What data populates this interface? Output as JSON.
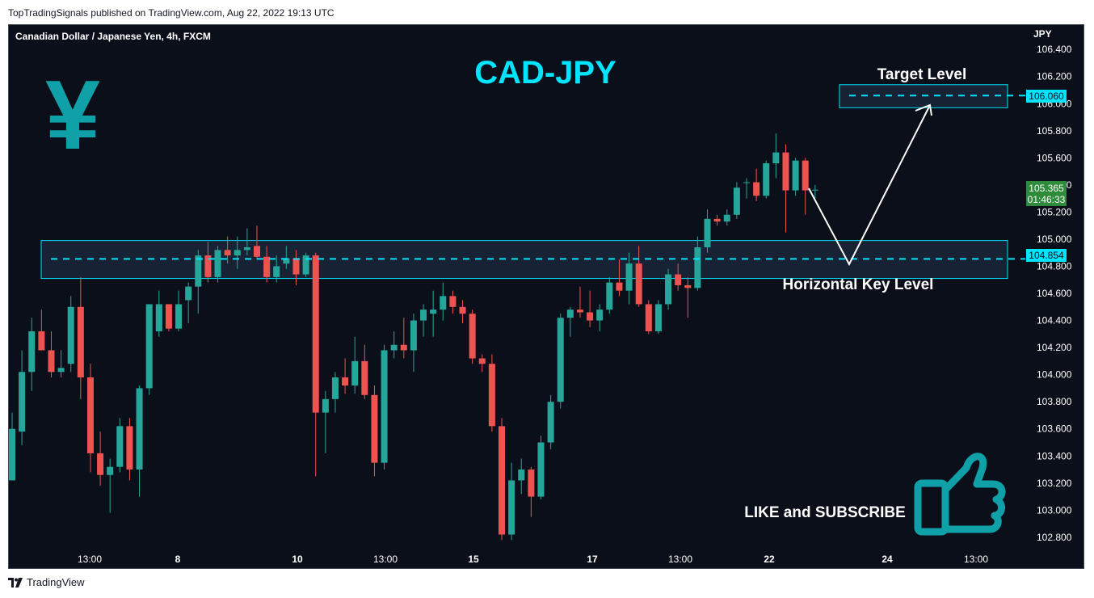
{
  "header": {
    "publish_line": "TopTradingSignals published on TradingView.com, Aug 22, 2022 19:13 UTC"
  },
  "chart_title": "Canadian Dollar / Japanese Yen, 4h, FXCM",
  "overlay": {
    "pair_text": "CAD-JPY",
    "target_label": "Target Level",
    "key_label": "Horizontal Key Level",
    "cta_text": "LIKE and SUBSCRIBE",
    "yen_symbol": "¥",
    "yen_icon": "yen-icon",
    "thumb_icon": "thumbs-up-icon",
    "accent_color": "#00e5ff",
    "teal_color": "#10a0a8"
  },
  "price_axis": {
    "currency": "JPY",
    "ticks": [
      "106.400",
      "106.200",
      "106.000",
      "105.800",
      "105.600",
      "105.400",
      "105.200",
      "105.000",
      "104.800",
      "104.600",
      "104.400",
      "104.200",
      "104.000",
      "103.800",
      "103.600",
      "103.400",
      "103.200",
      "103.000",
      "102.800"
    ],
    "last_price": "105.365",
    "countdown": "01:46:33",
    "target_price": "106.060",
    "key_price": "104.854"
  },
  "time_axis": {
    "ticks": [
      "13:00",
      "8",
      "10",
      "13:00",
      "15",
      "17",
      "13:00",
      "22",
      "24",
      "13:00"
    ]
  },
  "footer": {
    "brand": "TradingView"
  },
  "chart_data": {
    "type": "candlestick",
    "title": "Canadian Dollar / Japanese Yen, 4h, FXCM",
    "ylabel": "JPY",
    "ylim": [
      102.68,
      106.58
    ],
    "up_color": "#26a69a",
    "down_color": "#ef5350",
    "levels": [
      {
        "name": "Target Level",
        "value": 106.06,
        "zone": [
          105.97,
          106.14
        ]
      },
      {
        "name": "Horizontal Key Level",
        "value": 104.854,
        "zone": [
          104.71,
          104.99
        ]
      }
    ],
    "candles": [
      {
        "o": 103.22,
        "h": 103.72,
        "l": 103.22,
        "c": 103.6
      },
      {
        "o": 103.58,
        "h": 104.18,
        "l": 103.48,
        "c": 104.02
      },
      {
        "o": 104.02,
        "h": 104.42,
        "l": 103.88,
        "c": 104.32
      },
      {
        "o": 104.32,
        "h": 104.48,
        "l": 104.18,
        "c": 104.18
      },
      {
        "o": 104.18,
        "h": 104.32,
        "l": 103.98,
        "c": 104.02
      },
      {
        "o": 104.02,
        "h": 104.18,
        "l": 103.98,
        "c": 104.05
      },
      {
        "o": 104.08,
        "h": 104.58,
        "l": 104.02,
        "c": 104.5
      },
      {
        "o": 104.5,
        "h": 104.72,
        "l": 103.82,
        "c": 103.98
      },
      {
        "o": 103.98,
        "h": 104.08,
        "l": 103.28,
        "c": 103.42
      },
      {
        "o": 103.42,
        "h": 103.58,
        "l": 103.18,
        "c": 103.26
      },
      {
        "o": 103.26,
        "h": 103.38,
        "l": 102.98,
        "c": 103.32
      },
      {
        "o": 103.32,
        "h": 103.68,
        "l": 103.28,
        "c": 103.62
      },
      {
        "o": 103.62,
        "h": 103.68,
        "l": 103.22,
        "c": 103.3
      },
      {
        "o": 103.3,
        "h": 103.92,
        "l": 103.1,
        "c": 103.9
      },
      {
        "o": 103.9,
        "h": 104.52,
        "l": 103.85,
        "c": 104.52
      },
      {
        "o": 104.32,
        "h": 104.62,
        "l": 104.28,
        "c": 104.52
      },
      {
        "o": 104.52,
        "h": 104.52,
        "l": 104.32,
        "c": 104.34
      },
      {
        "o": 104.34,
        "h": 104.62,
        "l": 104.32,
        "c": 104.52
      },
      {
        "o": 104.55,
        "h": 104.68,
        "l": 104.38,
        "c": 104.65
      },
      {
        "o": 104.65,
        "h": 104.92,
        "l": 104.45,
        "c": 104.88
      },
      {
        "o": 104.88,
        "h": 104.98,
        "l": 104.68,
        "c": 104.72
      },
      {
        "o": 104.72,
        "h": 104.95,
        "l": 104.68,
        "c": 104.92
      },
      {
        "o": 104.92,
        "h": 105.02,
        "l": 104.82,
        "c": 104.88
      },
      {
        "o": 104.88,
        "h": 105.02,
        "l": 104.78,
        "c": 104.92
      },
      {
        "o": 104.92,
        "h": 105.08,
        "l": 104.88,
        "c": 104.94
      },
      {
        "o": 104.95,
        "h": 105.1,
        "l": 104.85,
        "c": 104.87
      },
      {
        "o": 104.87,
        "h": 104.95,
        "l": 104.68,
        "c": 104.72
      },
      {
        "o": 104.72,
        "h": 104.88,
        "l": 104.68,
        "c": 104.8
      },
      {
        "o": 104.82,
        "h": 104.95,
        "l": 104.78,
        "c": 104.86
      },
      {
        "o": 104.86,
        "h": 104.92,
        "l": 104.66,
        "c": 104.74
      },
      {
        "o": 104.74,
        "h": 104.9,
        "l": 104.72,
        "c": 104.88
      },
      {
        "o": 104.88,
        "h": 104.9,
        "l": 103.25,
        "c": 103.72
      },
      {
        "o": 103.72,
        "h": 103.88,
        "l": 103.42,
        "c": 103.82
      },
      {
        "o": 103.82,
        "h": 104.02,
        "l": 103.72,
        "c": 103.98
      },
      {
        "o": 103.98,
        "h": 104.12,
        "l": 103.86,
        "c": 103.92
      },
      {
        "o": 103.92,
        "h": 104.28,
        "l": 103.86,
        "c": 104.1
      },
      {
        "o": 104.1,
        "h": 104.22,
        "l": 103.82,
        "c": 103.85
      },
      {
        "o": 103.85,
        "h": 103.92,
        "l": 103.25,
        "c": 103.35
      },
      {
        "o": 103.35,
        "h": 104.22,
        "l": 103.3,
        "c": 104.18
      },
      {
        "o": 104.18,
        "h": 104.32,
        "l": 104.12,
        "c": 104.22
      },
      {
        "o": 104.22,
        "h": 104.42,
        "l": 104.12,
        "c": 104.18
      },
      {
        "o": 104.18,
        "h": 104.45,
        "l": 104.02,
        "c": 104.4
      },
      {
        "o": 104.4,
        "h": 104.52,
        "l": 104.28,
        "c": 104.48
      },
      {
        "o": 104.45,
        "h": 104.62,
        "l": 104.28,
        "c": 104.48
      },
      {
        "o": 104.48,
        "h": 104.68,
        "l": 104.4,
        "c": 104.58
      },
      {
        "o": 104.58,
        "h": 104.62,
        "l": 104.45,
        "c": 104.5
      },
      {
        "o": 104.5,
        "h": 104.55,
        "l": 104.38,
        "c": 104.45
      },
      {
        "o": 104.45,
        "h": 104.48,
        "l": 104.08,
        "c": 104.12
      },
      {
        "o": 104.12,
        "h": 104.15,
        "l": 104.02,
        "c": 104.08
      },
      {
        "o": 104.08,
        "h": 104.15,
        "l": 103.58,
        "c": 103.62
      },
      {
        "o": 103.62,
        "h": 103.68,
        "l": 102.78,
        "c": 102.82
      },
      {
        "o": 102.82,
        "h": 103.35,
        "l": 102.78,
        "c": 103.22
      },
      {
        "o": 103.22,
        "h": 103.38,
        "l": 103.12,
        "c": 103.3
      },
      {
        "o": 103.3,
        "h": 103.32,
        "l": 102.95,
        "c": 103.1
      },
      {
        "o": 103.1,
        "h": 103.55,
        "l": 103.08,
        "c": 103.5
      },
      {
        "o": 103.5,
        "h": 103.85,
        "l": 103.45,
        "c": 103.8
      },
      {
        "o": 103.8,
        "h": 104.45,
        "l": 103.75,
        "c": 104.42
      },
      {
        "o": 104.42,
        "h": 104.5,
        "l": 104.28,
        "c": 104.48
      },
      {
        "o": 104.48,
        "h": 104.65,
        "l": 104.42,
        "c": 104.46
      },
      {
        "o": 104.46,
        "h": 104.62,
        "l": 104.35,
        "c": 104.4
      },
      {
        "o": 104.4,
        "h": 104.52,
        "l": 104.32,
        "c": 104.48
      },
      {
        "o": 104.48,
        "h": 104.72,
        "l": 104.45,
        "c": 104.68
      },
      {
        "o": 104.68,
        "h": 104.85,
        "l": 104.58,
        "c": 104.62
      },
      {
        "o": 104.62,
        "h": 104.9,
        "l": 104.52,
        "c": 104.82
      },
      {
        "o": 104.82,
        "h": 104.95,
        "l": 104.5,
        "c": 104.52
      },
      {
        "o": 104.52,
        "h": 104.55,
        "l": 104.3,
        "c": 104.32
      },
      {
        "o": 104.32,
        "h": 104.55,
        "l": 104.3,
        "c": 104.52
      },
      {
        "o": 104.52,
        "h": 104.78,
        "l": 104.48,
        "c": 104.74
      },
      {
        "o": 104.74,
        "h": 104.82,
        "l": 104.62,
        "c": 104.66
      },
      {
        "o": 104.66,
        "h": 104.72,
        "l": 104.42,
        "c": 104.64
      },
      {
        "o": 104.64,
        "h": 105.02,
        "l": 104.62,
        "c": 104.94
      },
      {
        "o": 104.94,
        "h": 105.22,
        "l": 104.9,
        "c": 105.15
      },
      {
        "o": 105.15,
        "h": 105.18,
        "l": 105.1,
        "c": 105.13
      },
      {
        "o": 105.13,
        "h": 105.22,
        "l": 105.1,
        "c": 105.18
      },
      {
        "o": 105.18,
        "h": 105.42,
        "l": 105.15,
        "c": 105.38
      },
      {
        "o": 105.42,
        "h": 105.45,
        "l": 105.3,
        "c": 105.42
      },
      {
        "o": 105.42,
        "h": 105.52,
        "l": 105.28,
        "c": 105.32
      },
      {
        "o": 105.32,
        "h": 105.58,
        "l": 105.3,
        "c": 105.56
      },
      {
        "o": 105.56,
        "h": 105.78,
        "l": 105.45,
        "c": 105.64
      },
      {
        "o": 105.64,
        "h": 105.7,
        "l": 105.05,
        "c": 105.36
      },
      {
        "o": 105.36,
        "h": 105.6,
        "l": 105.32,
        "c": 105.58
      },
      {
        "o": 105.58,
        "h": 105.6,
        "l": 105.18,
        "c": 105.36
      },
      {
        "o": 105.36,
        "h": 105.4,
        "l": 105.3,
        "c": 105.365
      }
    ]
  }
}
